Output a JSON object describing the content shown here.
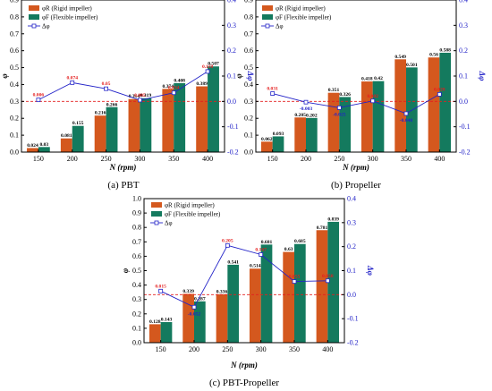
{
  "colors": {
    "rigid": "#d4581e",
    "flexible": "#147a5e",
    "delta_line": "#2323c8",
    "delta_label_pos": "#e41e1e",
    "delta_label_neg": "#2323c8",
    "ref_line": "#e41e1e"
  },
  "legend": {
    "rigid_label": "φR (Rigid impeller)",
    "flexible_label": "φF (Flexible impeller)",
    "delta_label": "Δφ"
  },
  "chart_data": [
    {
      "type": "bar",
      "caption": "(a) PBT",
      "xlabel": "N (rpm)",
      "ylabel": "φ",
      "y2label": "Δφ",
      "categories": [
        "150",
        "200",
        "250",
        "300",
        "350",
        "400"
      ],
      "ylim": [
        0,
        0.9
      ],
      "y2lim": [
        -0.2,
        0.4
      ],
      "series": [
        {
          "name": "φR (Rigid impeller)",
          "values": [
            0.024,
            0.081,
            0.216,
            0.314,
            0.374,
            0.389
          ]
        },
        {
          "name": "φF (Flexible impeller)",
          "values": [
            0.03,
            0.155,
            0.266,
            0.319,
            0.408,
            0.507
          ]
        },
        {
          "name": "Δφ",
          "values": [
            0.006,
            0.074,
            0.05,
            0.005,
            0.034,
            0.118
          ]
        }
      ],
      "bar_labels_rigid": [
        "0.024",
        "0.081",
        "0.216",
        "0.314",
        "0.374",
        "0.389"
      ],
      "bar_labels_flexible": [
        "0.03",
        "0.155",
        "0.266",
        "0.319",
        "0.408",
        "0.507"
      ],
      "delta_labels": [
        "0.006",
        "0.074",
        "0.05",
        "0.005",
        "0.034",
        "0.118"
      ]
    },
    {
      "type": "bar",
      "caption": "(b) Propeller",
      "xlabel": "N (rpm)",
      "ylabel": "φ",
      "y2label": "Δφ",
      "categories": [
        "150",
        "200",
        "250",
        "300",
        "350",
        "400"
      ],
      "ylim": [
        0,
        0.9
      ],
      "y2lim": [
        -0.2,
        0.4
      ],
      "series": [
        {
          "name": "φR (Rigid impeller)",
          "values": [
            0.062,
            0.205,
            0.351,
            0.418,
            0.549,
            0.56
          ]
        },
        {
          "name": "φF (Flexible impeller)",
          "values": [
            0.093,
            0.202,
            0.326,
            0.42,
            0.501,
            0.588
          ]
        },
        {
          "name": "Δφ",
          "values": [
            0.031,
            -0.003,
            -0.025,
            0.002,
            -0.048,
            0.028
          ]
        }
      ],
      "bar_labels_rigid": [
        "0.062",
        "0.205",
        "0.351",
        "0.418",
        "0.549",
        "0.56"
      ],
      "bar_labels_flexible": [
        "0.093",
        "0.202",
        "0.326",
        "0.42",
        "0.501",
        "0.588"
      ],
      "delta_labels": [
        "0.031",
        "-0.003",
        "-0.025",
        "0.002",
        "-0.048",
        "0.028"
      ]
    },
    {
      "type": "bar",
      "caption": "(c) PBT-Propeller",
      "xlabel": "N (rpm)",
      "ylabel": "φ",
      "y2label": "Δφ",
      "categories": [
        "150",
        "200",
        "250",
        "300",
        "350",
        "400"
      ],
      "ylim": [
        0,
        1.0
      ],
      "y2lim": [
        -0.2,
        0.4
      ],
      "series": [
        {
          "name": "φR (Rigid impeller)",
          "values": [
            0.128,
            0.339,
            0.336,
            0.514,
            0.63,
            0.781
          ]
        },
        {
          "name": "φF (Flexible impeller)",
          "values": [
            0.143,
            0.287,
            0.541,
            0.681,
            0.685,
            0.839
          ]
        },
        {
          "name": "Δφ",
          "values": [
            0.015,
            -0.052,
            0.205,
            0.167,
            0.055,
            0.058
          ]
        }
      ],
      "bar_labels_rigid": [
        "0.128",
        "0.339",
        "0.336",
        "0.514",
        "0.63",
        "0.781"
      ],
      "bar_labels_flexible": [
        "0.143",
        "0.287",
        "0.541",
        "0.681",
        "0.685",
        "0.839"
      ],
      "delta_labels": [
        "0.015",
        "-0.052",
        "0.205",
        "0.167",
        "0.055",
        "0.058"
      ]
    }
  ]
}
